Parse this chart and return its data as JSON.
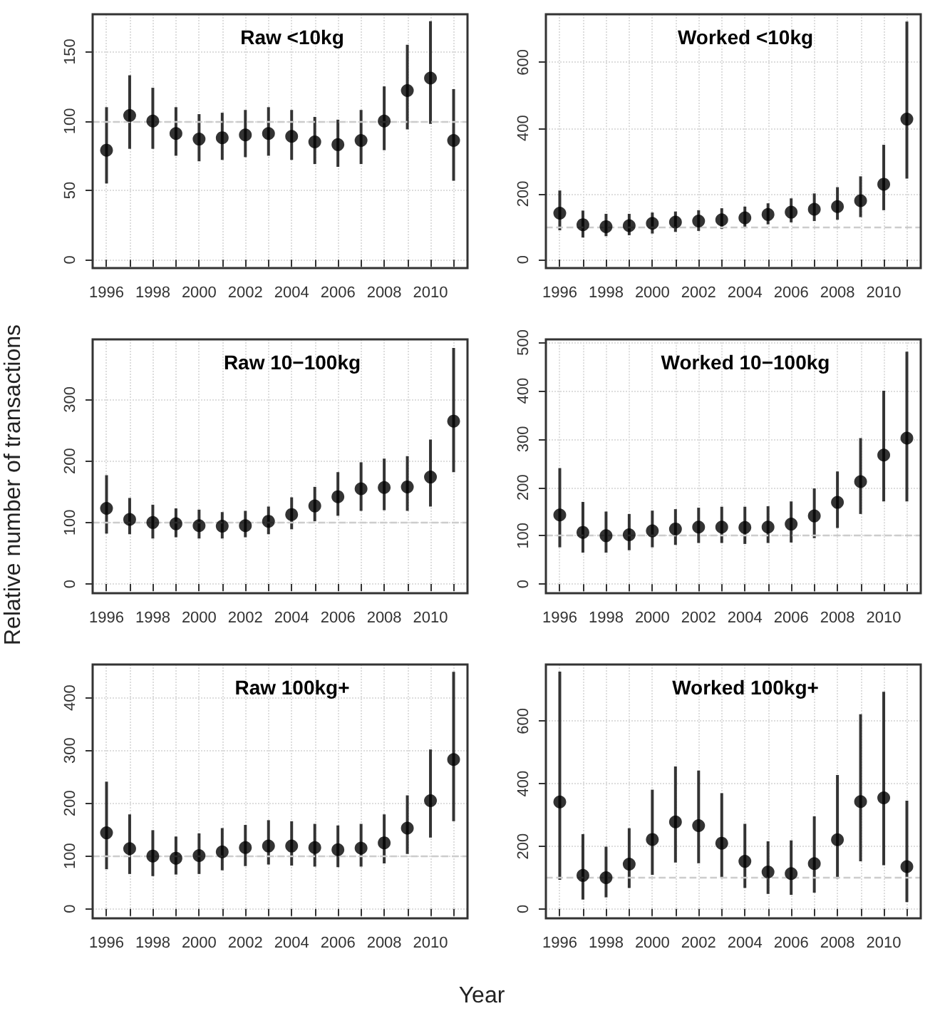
{
  "chart_data": [
    {
      "type": "scatter",
      "title": "Raw <10kg",
      "x": [
        1996,
        1997,
        1998,
        1999,
        2000,
        2001,
        2002,
        2003,
        2004,
        2005,
        2006,
        2007,
        2008,
        2009,
        2010,
        2011
      ],
      "series": [
        {
          "color": "#000000",
          "values": [
            79,
            104,
            100,
            91,
            87,
            88,
            90,
            91,
            89,
            85,
            83,
            86,
            100,
            122,
            131,
            86
          ],
          "errors": [
            [
              55,
              110
            ],
            [
              80,
              133
            ],
            [
              80,
              124
            ],
            [
              75,
              110
            ],
            [
              71,
              105
            ],
            [
              72,
              106
            ],
            [
              74,
              108
            ],
            [
              75,
              110
            ],
            [
              72,
              108
            ],
            [
              69,
              103
            ],
            [
              67,
              101
            ],
            [
              69,
              108
            ],
            [
              79,
              125
            ],
            [
              94,
              155
            ],
            [
              98,
              172
            ],
            [
              57,
              123
            ]
          ]
        }
      ],
      "xlim": [
        1995.4,
        2011.6
      ],
      "xticks": [
        1996,
        {
          "value": 1997,
          "label": null
        },
        1998,
        {
          "value": 1999,
          "label": null
        },
        2000,
        {
          "value": 2001,
          "label": null
        },
        2002,
        {
          "value": 2003,
          "label": null
        },
        2004,
        {
          "value": 2005,
          "label": null
        },
        2006,
        {
          "value": 2007,
          "label": null
        },
        2008,
        {
          "value": 2009,
          "label": null
        },
        2010,
        {
          "value": 2011,
          "label": null
        }
      ],
      "ylim": [
        -6,
        177
      ],
      "yticks": [
        0,
        50,
        100,
        150
      ],
      "grid": true,
      "marker": "circle",
      "ref_lines": [
        {
          "axis": "y",
          "value": 100,
          "color": "#cccccc",
          "line_style": "dashed"
        }
      ]
    },
    {
      "type": "scatter",
      "title": "Worked <10kg",
      "x": [
        1996,
        1997,
        1998,
        1999,
        2000,
        2001,
        2002,
        2003,
        2004,
        2005,
        2006,
        2007,
        2008,
        2009,
        2010,
        2011
      ],
      "series": [
        {
          "color": "#000000",
          "values": [
            141,
            106,
            100,
            103,
            110,
            114,
            117,
            121,
            127,
            137,
            144,
            153,
            161,
            179,
            229,
            427
          ],
          "errors": [
            [
              89,
              210
            ],
            [
              67,
              149
            ],
            [
              71,
              139
            ],
            [
              74,
              139
            ],
            [
              79,
              143
            ],
            [
              84,
              146
            ],
            [
              87,
              150
            ],
            [
              93,
              156
            ],
            [
              99,
              161
            ],
            [
              107,
              171
            ],
            [
              113,
              186
            ],
            [
              117,
              201
            ],
            [
              121,
              220
            ],
            [
              129,
              253
            ],
            [
              150,
              349
            ],
            [
              246,
              724
            ]
          ]
        }
      ],
      "xlim": [
        1995.4,
        2011.6
      ],
      "xticks": [
        1996,
        {
          "value": 1997,
          "label": null
        },
        1998,
        {
          "value": 1999,
          "label": null
        },
        2000,
        {
          "value": 2001,
          "label": null
        },
        2002,
        {
          "value": 2003,
          "label": null
        },
        2004,
        {
          "value": 2005,
          "label": null
        },
        2006,
        {
          "value": 2007,
          "label": null
        },
        2008,
        {
          "value": 2009,
          "label": null
        },
        2010,
        {
          "value": 2011,
          "label": null
        }
      ],
      "ylim": [
        -26,
        746
      ],
      "yticks": [
        0,
        200,
        400,
        600
      ],
      "grid": true,
      "marker": "circle",
      "ref_lines": [
        {
          "axis": "y",
          "value": 100,
          "color": "#cccccc",
          "line_style": "dashed"
        }
      ]
    },
    {
      "type": "scatter",
      "title": "Raw 10−100kg",
      "ylabel": "Relative number of transactions",
      "x": [
        1996,
        1997,
        1998,
        1999,
        2000,
        2001,
        2002,
        2003,
        2004,
        2005,
        2006,
        2007,
        2008,
        2009,
        2010,
        2011
      ],
      "series": [
        {
          "color": "#000000",
          "values": [
            123,
            105,
            100,
            98,
            95,
            94,
            95,
            102,
            113,
            127,
            142,
            155,
            157,
            158,
            174,
            265
          ],
          "errors": [
            [
              82,
              177
            ],
            [
              81,
              140
            ],
            [
              74,
              129
            ],
            [
              76,
              123
            ],
            [
              74,
              121
            ],
            [
              74,
              117
            ],
            [
              76,
              119
            ],
            [
              81,
              126
            ],
            [
              89,
              141
            ],
            [
              102,
              158
            ],
            [
              111,
              182
            ],
            [
              119,
              198
            ],
            [
              120,
              204
            ],
            [
              119,
              208
            ],
            [
              126,
              235
            ],
            [
              182,
              384
            ]
          ]
        }
      ],
      "xlim": [
        1995.4,
        2011.6
      ],
      "xticks": [
        1996,
        {
          "value": 1997,
          "label": null
        },
        1998,
        {
          "value": 1999,
          "label": null
        },
        2000,
        {
          "value": 2001,
          "label": null
        },
        2002,
        {
          "value": 2003,
          "label": null
        },
        2004,
        {
          "value": 2005,
          "label": null
        },
        2006,
        {
          "value": 2007,
          "label": null
        },
        2008,
        {
          "value": 2009,
          "label": null
        },
        2010,
        {
          "value": 2011,
          "label": null
        }
      ],
      "ylim": [
        -15,
        398
      ],
      "yticks": [
        0,
        100,
        200,
        300
      ],
      "grid": true,
      "marker": "circle",
      "ref_lines": [
        {
          "axis": "y",
          "value": 100,
          "color": "#cccccc",
          "line_style": "dashed"
        }
      ]
    },
    {
      "type": "scatter",
      "title": "Worked 10−100kg",
      "x": [
        1996,
        1997,
        1998,
        1999,
        2000,
        2001,
        2002,
        2003,
        2004,
        2005,
        2006,
        2007,
        2008,
        2009,
        2010,
        2011
      ],
      "series": [
        {
          "color": "#000000",
          "values": [
            143,
            107,
            100,
            102,
            110,
            114,
            118,
            118,
            117,
            118,
            124,
            141,
            169,
            212,
            267,
            302
          ],
          "errors": [
            [
              76,
              240
            ],
            [
              65,
              170
            ],
            [
              65,
              150
            ],
            [
              70,
              145
            ],
            [
              76,
              152
            ],
            [
              81,
              155
            ],
            [
              85,
              158
            ],
            [
              85,
              160
            ],
            [
              83,
              160
            ],
            [
              85,
              161
            ],
            [
              86,
              171
            ],
            [
              95,
              198
            ],
            [
              116,
              233
            ],
            [
              145,
              302
            ],
            [
              171,
              400
            ],
            [
              171,
              481
            ]
          ]
        }
      ],
      "xlim": [
        1995.4,
        2011.6
      ],
      "xticks": [
        1996,
        {
          "value": 1997,
          "label": null
        },
        1998,
        {
          "value": 1999,
          "label": null
        },
        2000,
        {
          "value": 2001,
          "label": null
        },
        2002,
        {
          "value": 2003,
          "label": null
        },
        2004,
        {
          "value": 2005,
          "label": null
        },
        2006,
        {
          "value": 2007,
          "label": null
        },
        2008,
        {
          "value": 2009,
          "label": null
        },
        2010,
        {
          "value": 2011,
          "label": null
        }
      ],
      "ylim": [
        -19,
        500
      ],
      "yticks": [
        0,
        100,
        200,
        300,
        400,
        500
      ],
      "grid": true,
      "marker": "circle",
      "ref_lines": [
        {
          "axis": "y",
          "value": 100,
          "color": "#cccccc",
          "line_style": "dashed"
        }
      ]
    },
    {
      "type": "scatter",
      "title": "Raw 100kg+",
      "xlabel": "Year",
      "x": [
        1996,
        1997,
        1998,
        1999,
        2000,
        2001,
        2002,
        2003,
        2004,
        2005,
        2006,
        2007,
        2008,
        2009,
        2010,
        2011
      ],
      "series": [
        {
          "color": "#000000",
          "values": [
            144,
            114,
            100,
            96,
            101,
            108,
            116,
            119,
            119,
            116,
            112,
            115,
            125,
            153,
            205,
            283
          ],
          "errors": [
            [
              75,
              241
            ],
            [
              66,
              179
            ],
            [
              62,
              149
            ],
            [
              65,
              137
            ],
            [
              66,
              143
            ],
            [
              73,
              153
            ],
            [
              81,
              159
            ],
            [
              84,
              168
            ],
            [
              82,
              166
            ],
            [
              80,
              161
            ],
            [
              79,
              158
            ],
            [
              80,
              161
            ],
            [
              86,
              179
            ],
            [
              104,
              215
            ],
            [
              135,
              302
            ],
            [
              166,
              449
            ]
          ]
        }
      ],
      "xlim": [
        1995.4,
        2011.6
      ],
      "xticks": [
        1996,
        {
          "value": 1997,
          "label": null
        },
        1998,
        {
          "value": 1999,
          "label": null
        },
        2000,
        {
          "value": 2001,
          "label": null
        },
        2002,
        {
          "value": 2003,
          "label": null
        },
        2004,
        {
          "value": 2005,
          "label": null
        },
        2006,
        {
          "value": 2007,
          "label": null
        },
        2008,
        {
          "value": 2009,
          "label": null
        },
        2010,
        {
          "value": 2011,
          "label": null
        }
      ],
      "ylim": [
        -18,
        463
      ],
      "yticks": [
        0,
        100,
        200,
        300,
        400
      ],
      "grid": true,
      "marker": "circle",
      "ref_lines": [
        {
          "axis": "y",
          "value": 100,
          "color": "#cccccc",
          "line_style": "dashed"
        }
      ]
    },
    {
      "type": "scatter",
      "title": "Worked 100kg+",
      "x": [
        1996,
        1997,
        1998,
        1999,
        2000,
        2001,
        2002,
        2003,
        2004,
        2005,
        2006,
        2007,
        2008,
        2009,
        2010,
        2011
      ],
      "series": [
        {
          "color": "#000000",
          "values": [
            342,
            107,
            100,
            143,
            222,
            278,
            266,
            210,
            152,
            118,
            113,
            145,
            221,
            343,
            355,
            135
          ],
          "errors": [
            [
              93,
              758
            ],
            [
              30,
              239
            ],
            [
              37,
              199
            ],
            [
              67,
              258
            ],
            [
              109,
              381
            ],
            [
              148,
              455
            ],
            [
              146,
              442
            ],
            [
              101,
              370
            ],
            [
              67,
              272
            ],
            [
              48,
              216
            ],
            [
              45,
              219
            ],
            [
              52,
              296
            ],
            [
              97,
              428
            ],
            [
              152,
              622
            ],
            [
              140,
              694
            ],
            [
              22,
              346
            ]
          ]
        }
      ],
      "xlim": [
        1995.4,
        2011.6
      ],
      "xticks": [
        1996,
        {
          "value": 1997,
          "label": null
        },
        1998,
        {
          "value": 1999,
          "label": null
        },
        2000,
        {
          "value": 2001,
          "label": null
        },
        2002,
        {
          "value": 2003,
          "label": null
        },
        2004,
        {
          "value": 2005,
          "label": null
        },
        2006,
        {
          "value": 2007,
          "label": null
        },
        2008,
        {
          "value": 2009,
          "label": null
        },
        2010,
        {
          "value": 2011,
          "label": null
        }
      ],
      "ylim": [
        -30,
        781
      ],
      "yticks": [
        0,
        200,
        400,
        600
      ],
      "grid": true,
      "marker": "circle",
      "ref_lines": [
        {
          "axis": "y",
          "value": 100,
          "color": "#cccccc",
          "line_style": "dashed"
        }
      ]
    }
  ]
}
